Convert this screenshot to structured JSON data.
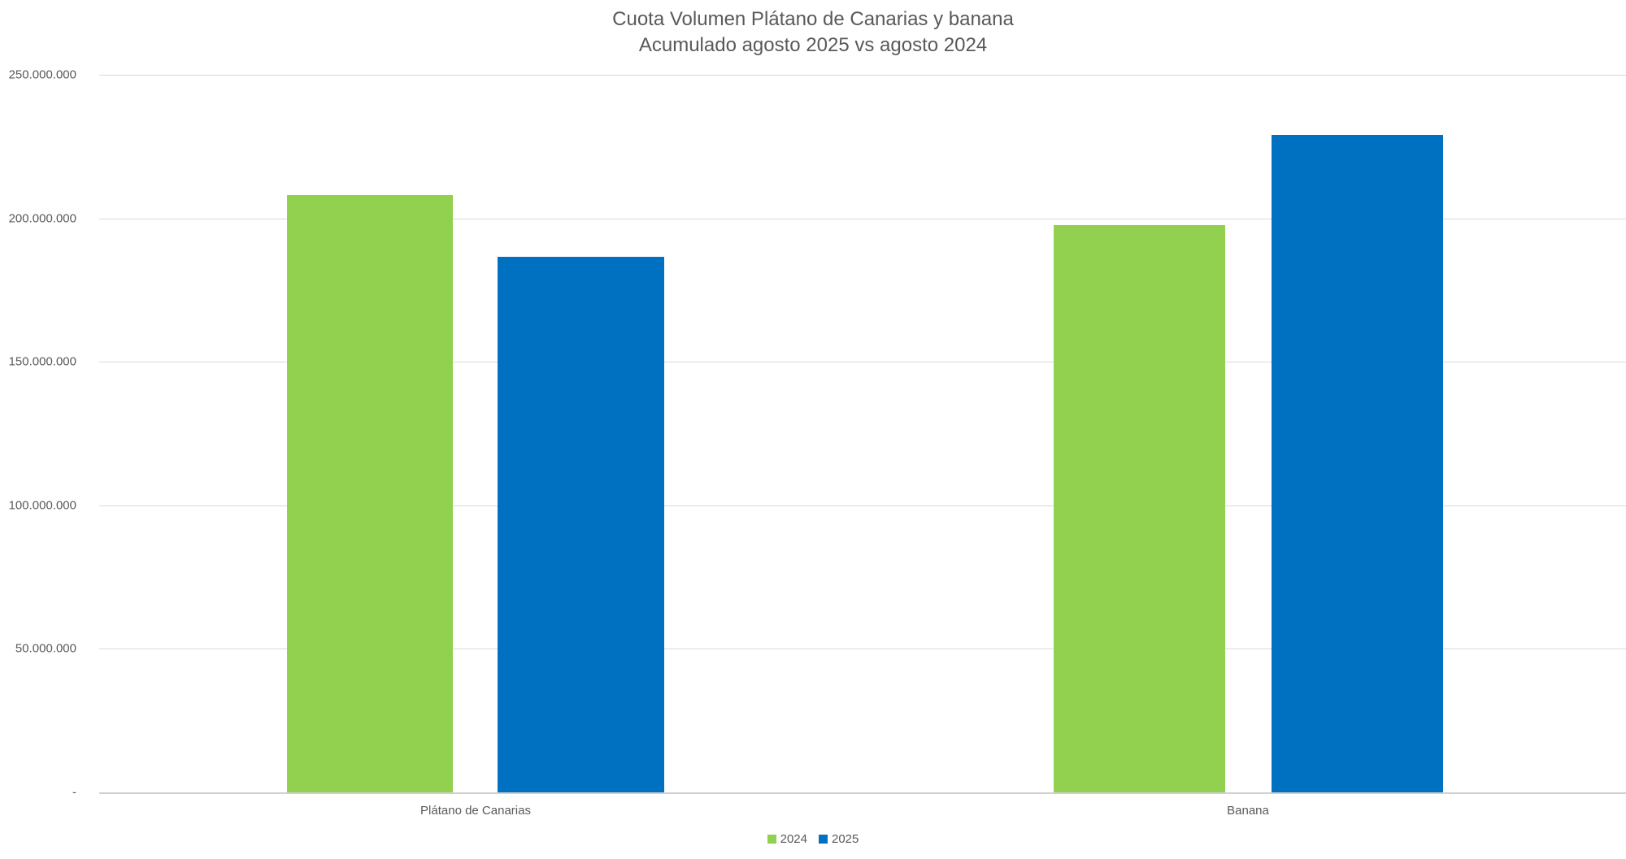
{
  "chart_data": {
    "type": "bar",
    "title": "Cuota Volumen Plátano de Canarias y banana",
    "subtitle": "Acumulado agosto 2025 vs agosto 2024",
    "categories": [
      "Plátano de Canarias",
      "Banana"
    ],
    "series": [
      {
        "name": "2024",
        "color": "#92d050",
        "values": [
          208000000,
          197500000
        ]
      },
      {
        "name": "2025",
        "color": "#0070c0",
        "values": [
          186500000,
          229000000
        ]
      }
    ],
    "xlabel": "",
    "ylabel": "",
    "ylim": [
      0,
      250000000
    ],
    "yticks": [
      0,
      50000000,
      100000000,
      150000000,
      200000000,
      250000000
    ],
    "ytick_labels": [
      "-",
      "50.000.000",
      "100.000.000",
      "150.000.000",
      "200.000.000",
      "250.000.000"
    ],
    "grid": true,
    "legend_position": "bottom"
  },
  "title": {
    "line1": "Cuota Volumen Plátano de Canarias y banana",
    "line2": "Acumulado agosto 2025 vs agosto 2024"
  },
  "axis": {
    "y_labels": [
      "250.000.000",
      "200.000.000",
      "150.000.000",
      "100.000.000",
      "50.000.000",
      "-"
    ],
    "x_labels": [
      "Plátano de Canarias",
      "Banana"
    ]
  },
  "legend": {
    "items": [
      {
        "label": "2024",
        "color": "#92d050"
      },
      {
        "label": "2025",
        "color": "#0070c0"
      }
    ]
  }
}
